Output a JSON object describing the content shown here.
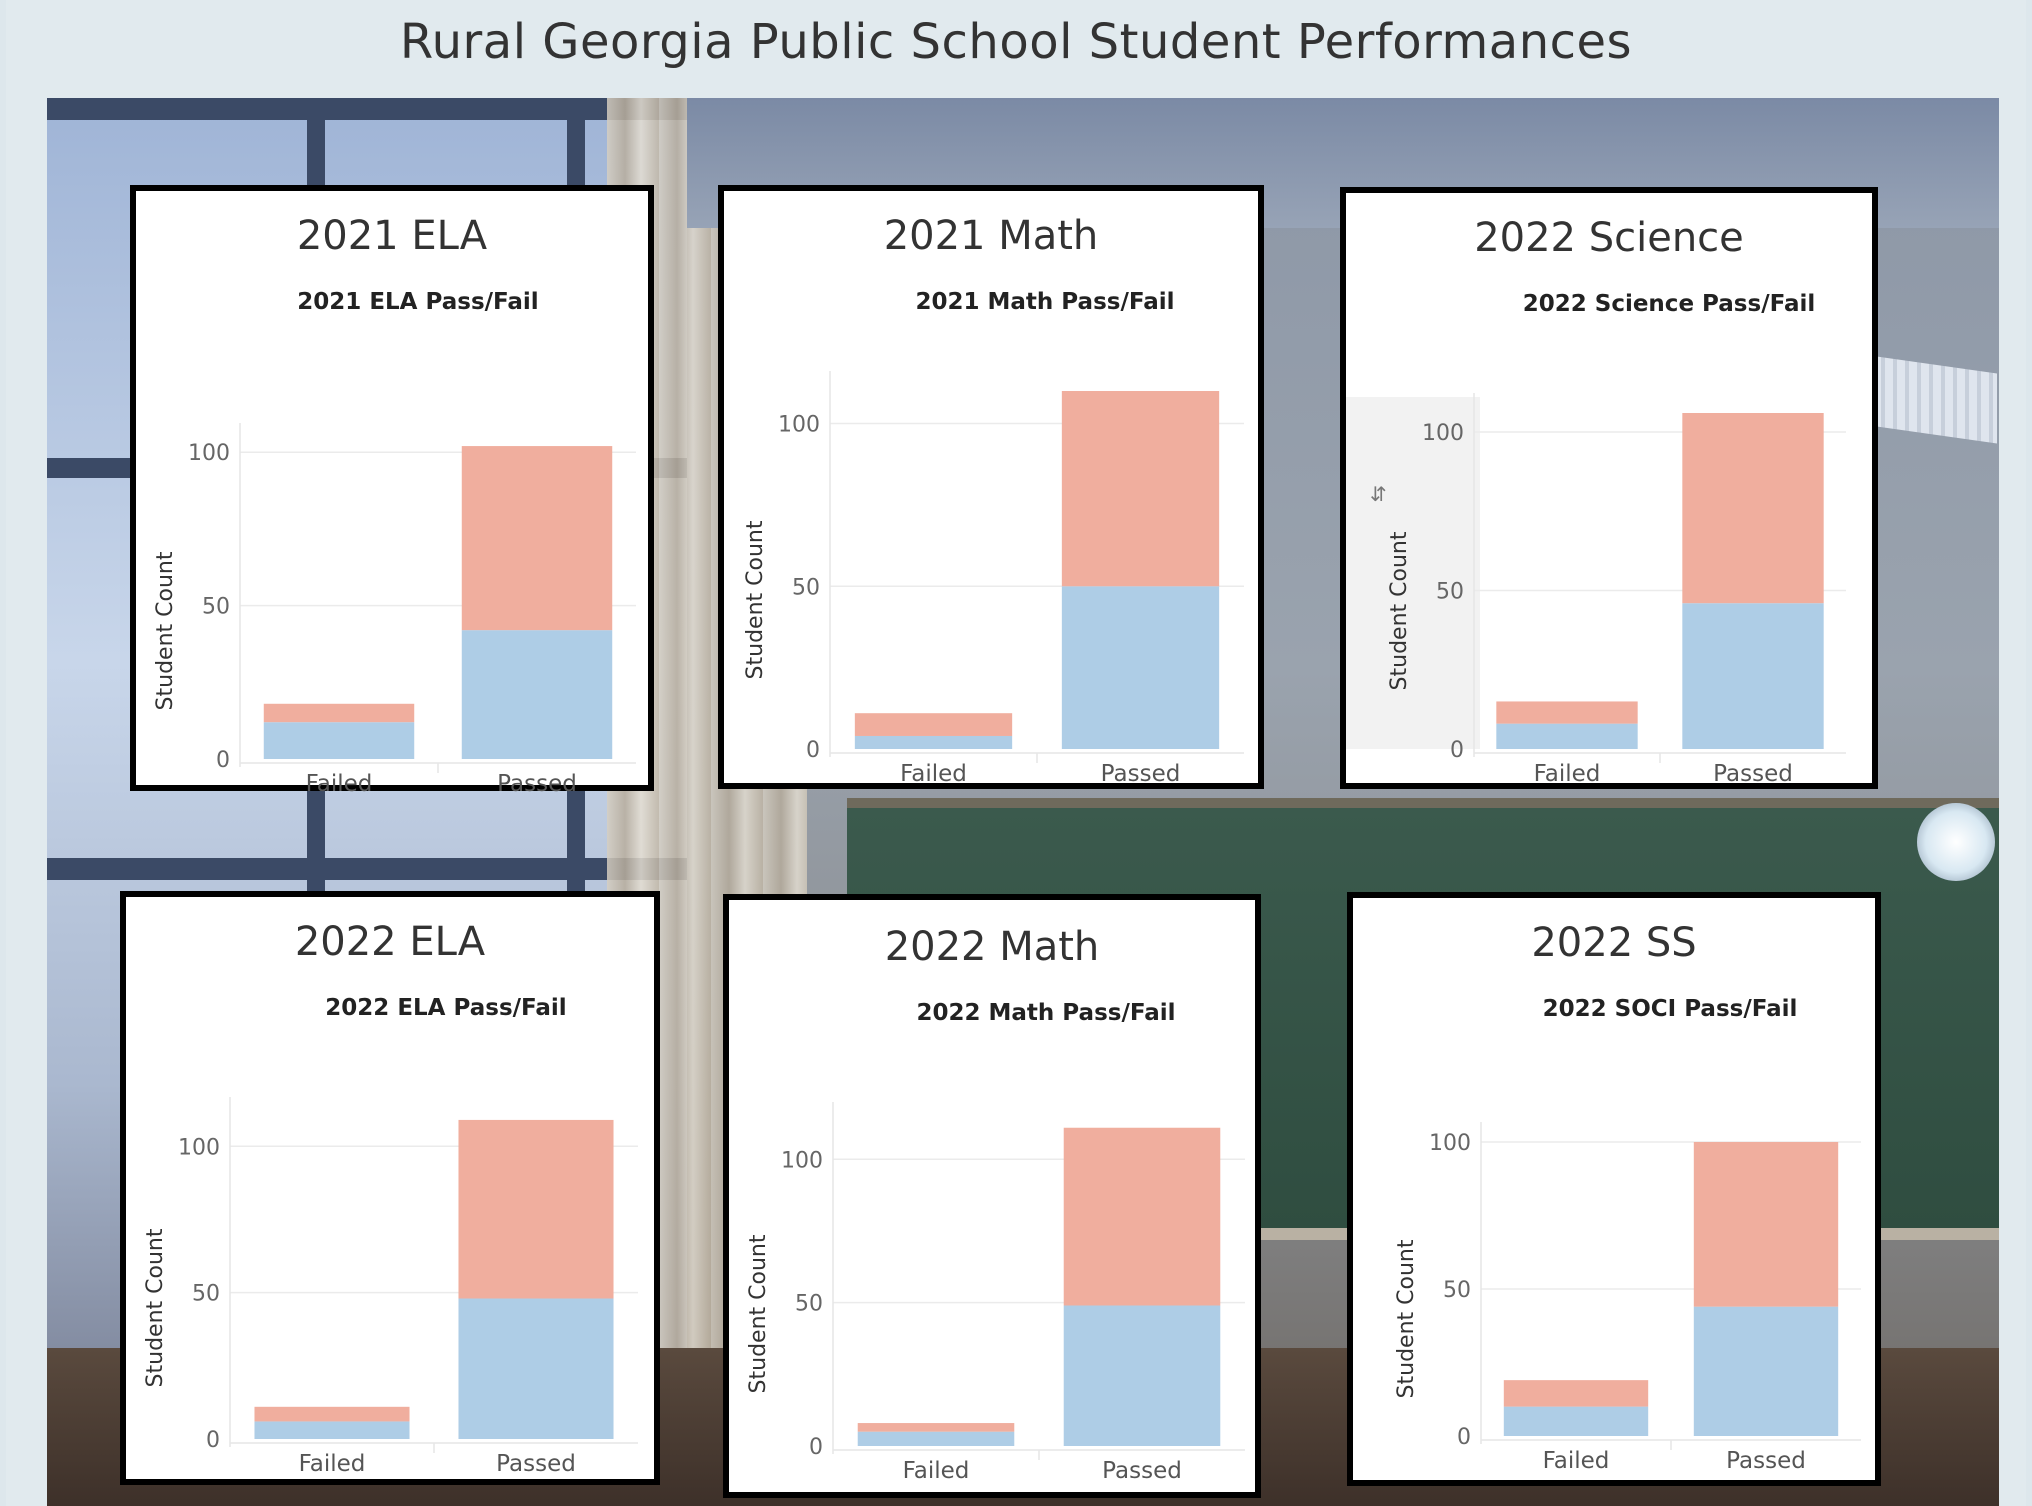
{
  "dashboard": {
    "title": "Rural Georgia Public School Student Performances"
  },
  "colors": {
    "bottom_segment": "#aecde6",
    "top_segment": "#f0ae9e",
    "gridline": "#ebebeb"
  },
  "cards": [
    {
      "title": "2021 ELA"
    },
    {
      "title": "2021 Math"
    },
    {
      "title": "2022 Science",
      "icon": "sort-icon"
    },
    {
      "title": "2022 ELA"
    },
    {
      "title": "2022 Math"
    },
    {
      "title": "2022 SS"
    }
  ],
  "chart_data": [
    {
      "type": "bar",
      "stacked": true,
      "title": "2021 ELA Pass/Fail",
      "ylabel": "Student Count",
      "categories": [
        "Failed",
        "Passed"
      ],
      "yticks": [
        0,
        50,
        100
      ],
      "ylim": [
        0,
        103
      ],
      "series": [
        {
          "values": [
            12,
            42
          ],
          "color": "#aecde6"
        },
        {
          "values": [
            6,
            60
          ],
          "color": "#f0ae9e"
        }
      ]
    },
    {
      "type": "bar",
      "stacked": true,
      "title": "2021 Math Pass/Fail",
      "ylabel": "Student Count",
      "categories": [
        "Failed",
        "Passed"
      ],
      "yticks": [
        0,
        50,
        100
      ],
      "ylim": [
        0,
        110
      ],
      "series": [
        {
          "values": [
            4,
            50
          ],
          "color": "#aecde6"
        },
        {
          "values": [
            7,
            60
          ],
          "color": "#f0ae9e"
        }
      ]
    },
    {
      "type": "bar",
      "stacked": true,
      "title": "2022 Science Pass/Fail",
      "ylabel": "Student Count",
      "categories": [
        "Failed",
        "Passed"
      ],
      "yticks": [
        0,
        50,
        100
      ],
      "ylim": [
        0,
        106
      ],
      "series": [
        {
          "values": [
            8,
            46
          ],
          "color": "#aecde6"
        },
        {
          "values": [
            7,
            60
          ],
          "color": "#f0ae9e"
        }
      ]
    },
    {
      "type": "bar",
      "stacked": true,
      "title": "2022 ELA Pass/Fail",
      "ylabel": "Student Count",
      "categories": [
        "Failed",
        "Passed"
      ],
      "yticks": [
        0,
        50,
        100
      ],
      "ylim": [
        0,
        110
      ],
      "series": [
        {
          "values": [
            6,
            48
          ],
          "color": "#aecde6"
        },
        {
          "values": [
            5,
            61
          ],
          "color": "#f0ae9e"
        }
      ]
    },
    {
      "type": "bar",
      "stacked": true,
      "title": "2022 Math Pass/Fail",
      "ylabel": "Student Count",
      "categories": [
        "Failed",
        "Passed"
      ],
      "yticks": [
        0,
        50,
        100
      ],
      "ylim": [
        0,
        113
      ],
      "series": [
        {
          "values": [
            5,
            49
          ],
          "color": "#aecde6"
        },
        {
          "values": [
            3,
            62
          ],
          "color": "#f0ae9e"
        }
      ]
    },
    {
      "type": "bar",
      "stacked": true,
      "title": "2022 SOCI Pass/Fail",
      "ylabel": "Student Count",
      "categories": [
        "Failed",
        "Passed"
      ],
      "yticks": [
        0,
        50,
        100
      ],
      "ylim": [
        0,
        100
      ],
      "series": [
        {
          "values": [
            10,
            44
          ],
          "color": "#aecde6"
        },
        {
          "values": [
            9,
            56
          ],
          "color": "#f0ae9e"
        }
      ]
    }
  ]
}
